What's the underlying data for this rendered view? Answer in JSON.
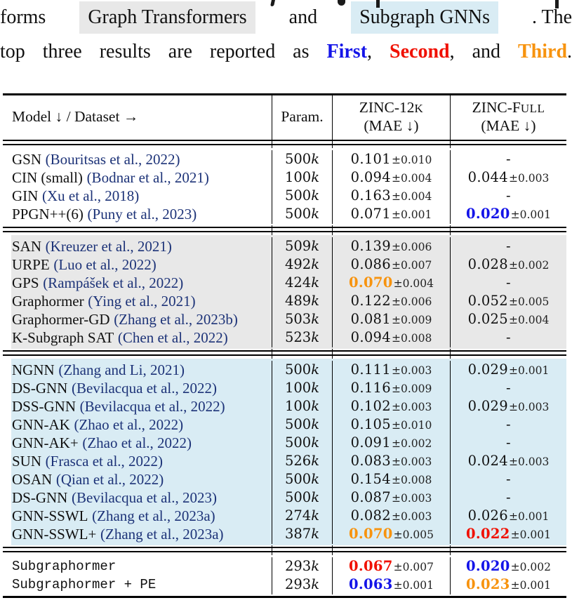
{
  "intro": {
    "line1_pre": "forms",
    "line1_hl1": "Graph Transformers",
    "line1_mid": "and",
    "line1_hl2": "Subgraph GNNs",
    "line1_post": ". The",
    "line2_pre": "top three results are reported as",
    "rank1": "First",
    "sep1": ", ",
    "rank2": "Second",
    "sep2": ", and ",
    "rank3": "Third",
    "line2_post": "."
  },
  "colors": {
    "first": "#1414e8",
    "second": "#f01000",
    "third": "#f7930e",
    "citation": "#1d3378",
    "gray_highlight": "#e8e8e8",
    "blue_highlight": "#d9ecf4"
  },
  "table": {
    "pm_sign": "±",
    "param_unit": "k",
    "header": {
      "col_model": "Model ↓ / Dataset →",
      "col_param": "Param.",
      "col_zinc12k_main": "ZINC-12",
      "col_zinc12k_sc": "K",
      "col_zinc12k_sub": "(MAE ↓)",
      "col_zincfull_main": "ZINC-F",
      "col_zincfull_sc": "ULL",
      "col_zincfull_sub": "(MAE ↓)"
    },
    "sections": [
      {
        "name": "mpnn-baselines",
        "style": "white",
        "mono": false,
        "rows": [
          {
            "model": "GSN",
            "cite": "(Bouritsas et al., 2022)",
            "param": "500",
            "z12_val": "0.101",
            "z12_pm": "0.010",
            "z12_rank": "",
            "zf_val": "-",
            "zf_pm": "",
            "zf_rank": ""
          },
          {
            "model": "CIN (small)",
            "cite": "(Bodnar et al., 2021)",
            "param": "100",
            "z12_val": "0.094",
            "z12_pm": "0.004",
            "z12_rank": "",
            "zf_val": "0.044",
            "zf_pm": "0.003",
            "zf_rank": ""
          },
          {
            "model": "GIN",
            "cite": "(Xu et al., 2018)",
            "param": "500",
            "z12_val": "0.163",
            "z12_pm": "0.004",
            "z12_rank": "",
            "zf_val": "-",
            "zf_pm": "",
            "zf_rank": ""
          },
          {
            "model": "PPGN++(6)",
            "cite": "(Puny et al., 2023)",
            "param": "500",
            "z12_val": "0.071",
            "z12_pm": "0.001",
            "z12_rank": "",
            "zf_val": "0.020",
            "zf_pm": "0.001",
            "zf_rank": "first"
          }
        ]
      },
      {
        "name": "graph-transformers",
        "style": "gray",
        "mono": false,
        "rows": [
          {
            "model": "SAN",
            "cite": "(Kreuzer et al., 2021)",
            "param": "509",
            "z12_val": "0.139",
            "z12_pm": "0.006",
            "z12_rank": "",
            "zf_val": "-",
            "zf_pm": "",
            "zf_rank": ""
          },
          {
            "model": "URPE",
            "cite": "(Luo et al., 2022)",
            "param": "492",
            "z12_val": "0.086",
            "z12_pm": "0.007",
            "z12_rank": "",
            "zf_val": "0.028",
            "zf_pm": "0.002",
            "zf_rank": ""
          },
          {
            "model": "GPS",
            "cite": "(Rampášek et al., 2022)",
            "param": "424",
            "z12_val": "0.070",
            "z12_pm": "0.004",
            "z12_rank": "third",
            "zf_val": "-",
            "zf_pm": "",
            "zf_rank": ""
          },
          {
            "model": "Graphormer",
            "cite": "(Ying et al., 2021)",
            "param": "489",
            "z12_val": "0.122",
            "z12_pm": "0.006",
            "z12_rank": "",
            "zf_val": "0.052",
            "zf_pm": "0.005",
            "zf_rank": ""
          },
          {
            "model": "Graphormer-GD",
            "cite": "(Zhang et al., 2023b)",
            "param": "503",
            "z12_val": "0.081",
            "z12_pm": "0.009",
            "z12_rank": "",
            "zf_val": "0.025",
            "zf_pm": "0.004",
            "zf_rank": ""
          },
          {
            "model": "K-Subgraph SAT",
            "cite": "(Chen et al., 2022)",
            "param": "523",
            "z12_val": "0.094",
            "z12_pm": "0.008",
            "z12_rank": "",
            "zf_val": "-",
            "zf_pm": "",
            "zf_rank": ""
          }
        ]
      },
      {
        "name": "subgraph-gnns",
        "style": "blue",
        "mono": false,
        "rows": [
          {
            "model": "NGNN",
            "cite": "(Zhang and Li, 2021)",
            "param": "500",
            "z12_val": "0.111",
            "z12_pm": "0.003",
            "z12_rank": "",
            "zf_val": "0.029",
            "zf_pm": "0.001",
            "zf_rank": ""
          },
          {
            "model": "DS-GNN",
            "cite": "(Bevilacqua et al., 2022)",
            "param": "100",
            "z12_val": "0.116",
            "z12_pm": "0.009",
            "z12_rank": "",
            "zf_val": "-",
            "zf_pm": "",
            "zf_rank": ""
          },
          {
            "model": "DSS-GNN",
            "cite": "(Bevilacqua et al., 2022)",
            "param": "100",
            "z12_val": "0.102",
            "z12_pm": "0.003",
            "z12_rank": "",
            "zf_val": "0.029",
            "zf_pm": "0.003",
            "zf_rank": ""
          },
          {
            "model": "GNN-AK",
            "cite": "(Zhao et al., 2022)",
            "param": "500",
            "z12_val": "0.105",
            "z12_pm": "0.010",
            "z12_rank": "",
            "zf_val": "-",
            "zf_pm": "",
            "zf_rank": ""
          },
          {
            "model": "GNN-AK+",
            "cite": "(Zhao et al., 2022)",
            "param": "500",
            "z12_val": "0.091",
            "z12_pm": "0.002",
            "z12_rank": "",
            "zf_val": "-",
            "zf_pm": "",
            "zf_rank": ""
          },
          {
            "model": "SUN",
            "cite": "(Frasca et al., 2022)",
            "param": "526",
            "z12_val": "0.083",
            "z12_pm": "0.003",
            "z12_rank": "",
            "zf_val": "0.024",
            "zf_pm": "0.003",
            "zf_rank": ""
          },
          {
            "model": "OSAN",
            "cite": "(Qian et al., 2022)",
            "param": "500",
            "z12_val": "0.154",
            "z12_pm": "0.008",
            "z12_rank": "",
            "zf_val": "-",
            "zf_pm": "",
            "zf_rank": ""
          },
          {
            "model": "DS-GNN",
            "cite": "(Bevilacqua et al., 2023)",
            "param": "500",
            "z12_val": "0.087",
            "z12_pm": "0.003",
            "z12_rank": "",
            "zf_val": "-",
            "zf_pm": "",
            "zf_rank": ""
          },
          {
            "model": "GNN-SSWL",
            "cite": "(Zhang et al., 2023a)",
            "param": "274",
            "z12_val": "0.082",
            "z12_pm": "0.003",
            "z12_rank": "",
            "zf_val": "0.026",
            "zf_pm": "0.001",
            "zf_rank": ""
          },
          {
            "model": "GNN-SSWL+",
            "cite": "(Zhang et al., 2023a)",
            "param": "387",
            "z12_val": "0.070",
            "z12_pm": "0.005",
            "z12_rank": "third",
            "zf_val": "0.022",
            "zf_pm": "0.001",
            "zf_rank": "second"
          }
        ]
      },
      {
        "name": "ours",
        "style": "white",
        "mono": true,
        "rows": [
          {
            "model": "Subgraphormer",
            "cite": "",
            "param": "293",
            "z12_val": "0.067",
            "z12_pm": "0.007",
            "z12_rank": "second",
            "zf_val": "0.020",
            "zf_pm": "0.002",
            "zf_rank": "first"
          },
          {
            "model": "Subgraphormer + PE",
            "cite": "",
            "param": "293",
            "z12_val": "0.063",
            "z12_pm": "0.001",
            "z12_rank": "first",
            "zf_val": "0.023",
            "zf_pm": "0.001",
            "zf_rank": "third"
          }
        ]
      }
    ]
  }
}
